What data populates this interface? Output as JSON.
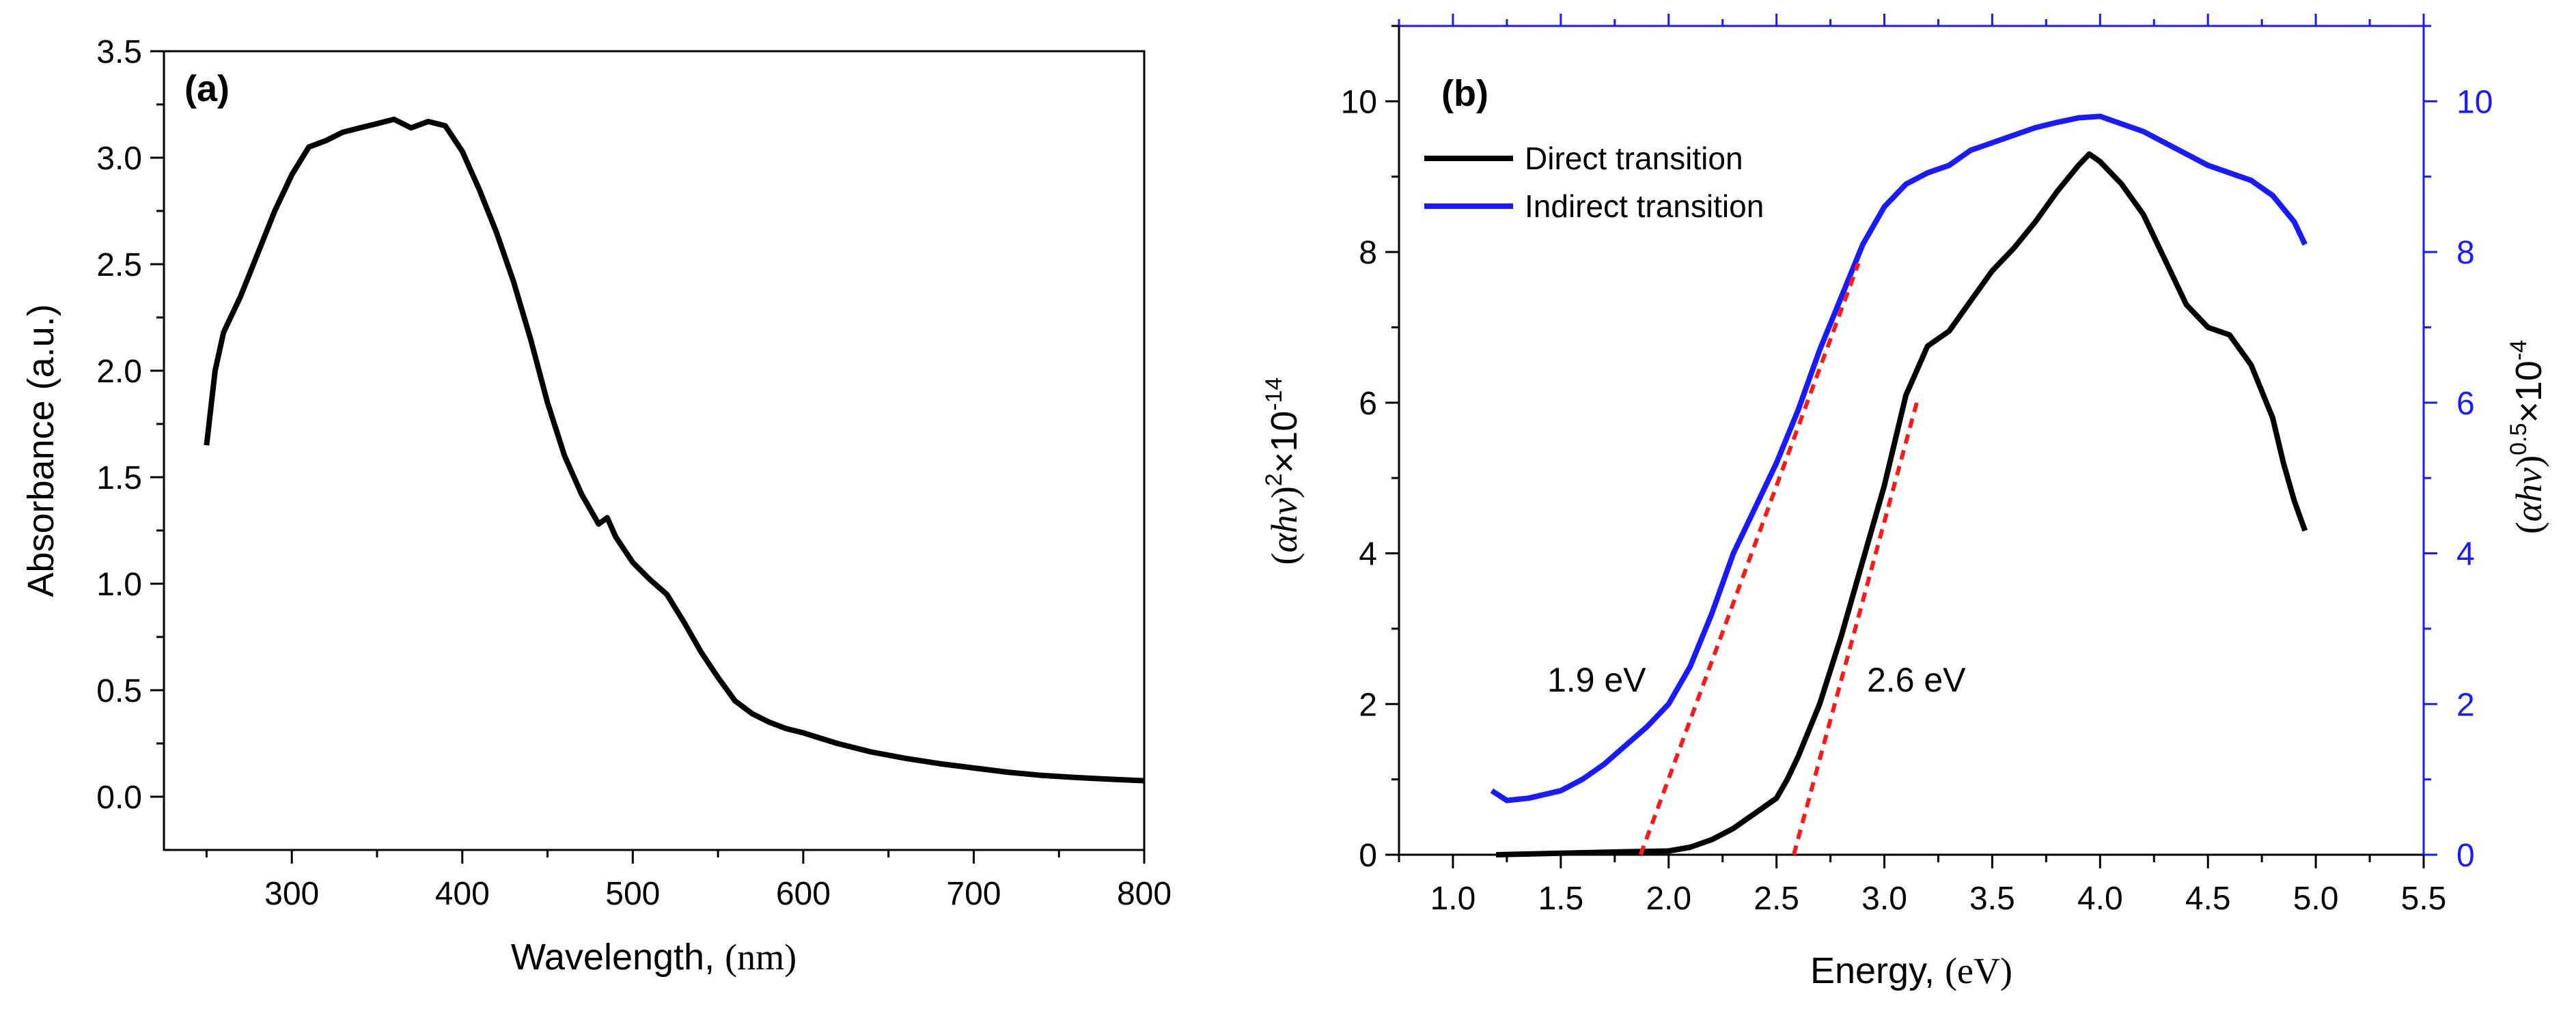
{
  "chart_data": [
    {
      "type": "line",
      "panel": "(a)",
      "xlabel": "Wavelength, (nm)",
      "ylabel": "Absorbance (a.u.)",
      "xlim": [
        225,
        800
      ],
      "ylim": [
        -0.25,
        3.5
      ],
      "xticks": [
        300,
        400,
        500,
        600,
        700,
        800
      ],
      "yticks": [
        0.0,
        0.5,
        1.0,
        1.5,
        2.0,
        2.5,
        3.0,
        3.5
      ],
      "xtick_labels": [
        "300",
        "400",
        "500",
        "600",
        "700",
        "800"
      ],
      "ytick_labels": [
        "0.0",
        "0.5",
        "1.0",
        "1.5",
        "2.0",
        "2.5",
        "3.0",
        "3.5"
      ],
      "color": "#000000",
      "series": [
        {
          "name": "Absorbance",
          "x": [
            250,
            255,
            260,
            270,
            280,
            290,
            300,
            310,
            320,
            330,
            340,
            350,
            360,
            370,
            380,
            390,
            400,
            410,
            420,
            430,
            440,
            450,
            460,
            470,
            480,
            485,
            490,
            500,
            510,
            520,
            530,
            540,
            550,
            560,
            570,
            580,
            590,
            600,
            620,
            640,
            660,
            680,
            700,
            720,
            740,
            760,
            780,
            800
          ],
          "y": [
            1.65,
            2.0,
            2.18,
            2.35,
            2.55,
            2.75,
            2.92,
            3.05,
            3.08,
            3.12,
            3.14,
            3.16,
            3.18,
            3.14,
            3.17,
            3.15,
            3.03,
            2.85,
            2.65,
            2.42,
            2.15,
            1.85,
            1.6,
            1.42,
            1.28,
            1.31,
            1.22,
            1.1,
            1.02,
            0.95,
            0.82,
            0.68,
            0.56,
            0.45,
            0.39,
            0.35,
            0.32,
            0.3,
            0.25,
            0.21,
            0.18,
            0.155,
            0.135,
            0.115,
            0.1,
            0.09,
            0.082,
            0.075
          ]
        }
      ]
    },
    {
      "type": "line",
      "panel": "(b)",
      "xlabel": "Energy, (eV)",
      "ylabel_left": "(αhv)²×10⁻¹⁴",
      "ylabel_right": "(αhv)⁰·⁵×10⁻⁴",
      "xlim": [
        0.75,
        5.5
      ],
      "ylim_left": [
        0,
        11
      ],
      "ylim_right": [
        0,
        11
      ],
      "xticks": [
        1.0,
        1.5,
        2.0,
        2.5,
        3.0,
        3.5,
        4.0,
        4.5,
        5.0,
        5.5
      ],
      "yticks_left": [
        0,
        2,
        4,
        6,
        8,
        10
      ],
      "yticks_right": [
        0,
        2,
        4,
        6,
        8,
        10
      ],
      "xtick_labels": [
        "1.0",
        "1.5",
        "2.0",
        "2.5",
        "3.0",
        "3.5",
        "4.0",
        "4.5",
        "5.0",
        "5.5"
      ],
      "ytick_labels": [
        "0",
        "2",
        "4",
        "6",
        "8",
        "10"
      ],
      "left_color": "#000000",
      "right_color": "#1a1aff",
      "fit_color": "#ff1a1a",
      "legend": [
        "Direct transition",
        "Indirect transition"
      ],
      "annotations": [
        "1.9 eV",
        "2.6 eV"
      ],
      "series": [
        {
          "name": "Direct transition",
          "axis": "left",
          "color": "#000000",
          "x": [
            1.2,
            1.5,
            1.8,
            2.0,
            2.1,
            2.2,
            2.3,
            2.4,
            2.5,
            2.55,
            2.6,
            2.7,
            2.8,
            2.9,
            3.0,
            3.1,
            3.2,
            3.3,
            3.4,
            3.5,
            3.6,
            3.7,
            3.8,
            3.9,
            3.95,
            4.0,
            4.1,
            4.2,
            4.3,
            4.4,
            4.5,
            4.6,
            4.7,
            4.8,
            4.85,
            4.9,
            4.95
          ],
          "y": [
            0.0,
            0.02,
            0.04,
            0.05,
            0.1,
            0.2,
            0.35,
            0.55,
            0.75,
            1.0,
            1.3,
            2.0,
            2.9,
            3.9,
            4.9,
            6.1,
            6.75,
            6.95,
            7.35,
            7.75,
            8.05,
            8.4,
            8.8,
            9.15,
            9.3,
            9.2,
            8.9,
            8.5,
            7.9,
            7.3,
            7.0,
            6.9,
            6.5,
            5.8,
            5.2,
            4.7,
            4.3
          ]
        },
        {
          "name": "Indirect transition",
          "axis": "right",
          "color": "#1a1aff",
          "x": [
            1.18,
            1.25,
            1.35,
            1.5,
            1.6,
            1.7,
            1.8,
            1.9,
            2.0,
            2.1,
            2.2,
            2.3,
            2.4,
            2.5,
            2.6,
            2.7,
            2.8,
            2.9,
            3.0,
            3.1,
            3.2,
            3.3,
            3.4,
            3.5,
            3.6,
            3.7,
            3.8,
            3.9,
            4.0,
            4.1,
            4.2,
            4.3,
            4.4,
            4.5,
            4.6,
            4.7,
            4.8,
            4.9,
            4.95
          ],
          "y": [
            0.85,
            0.72,
            0.75,
            0.85,
            1.0,
            1.2,
            1.45,
            1.7,
            2.0,
            2.5,
            3.2,
            4.0,
            4.6,
            5.2,
            5.9,
            6.7,
            7.4,
            8.1,
            8.6,
            8.9,
            9.05,
            9.15,
            9.35,
            9.45,
            9.55,
            9.65,
            9.72,
            9.78,
            9.8,
            9.7,
            9.6,
            9.45,
            9.3,
            9.15,
            9.05,
            8.95,
            8.75,
            8.4,
            8.1
          ]
        },
        {
          "name": "Indirect fit",
          "axis": "left",
          "color": "#ff1a1a",
          "dashed": true,
          "x": [
            1.87,
            2.88
          ],
          "y": [
            0.0,
            7.85
          ]
        },
        {
          "name": "Direct fit",
          "axis": "left",
          "color": "#ff1a1a",
          "dashed": true,
          "x": [
            2.58,
            3.15
          ],
          "y": [
            0.0,
            6.0
          ]
        }
      ]
    }
  ]
}
